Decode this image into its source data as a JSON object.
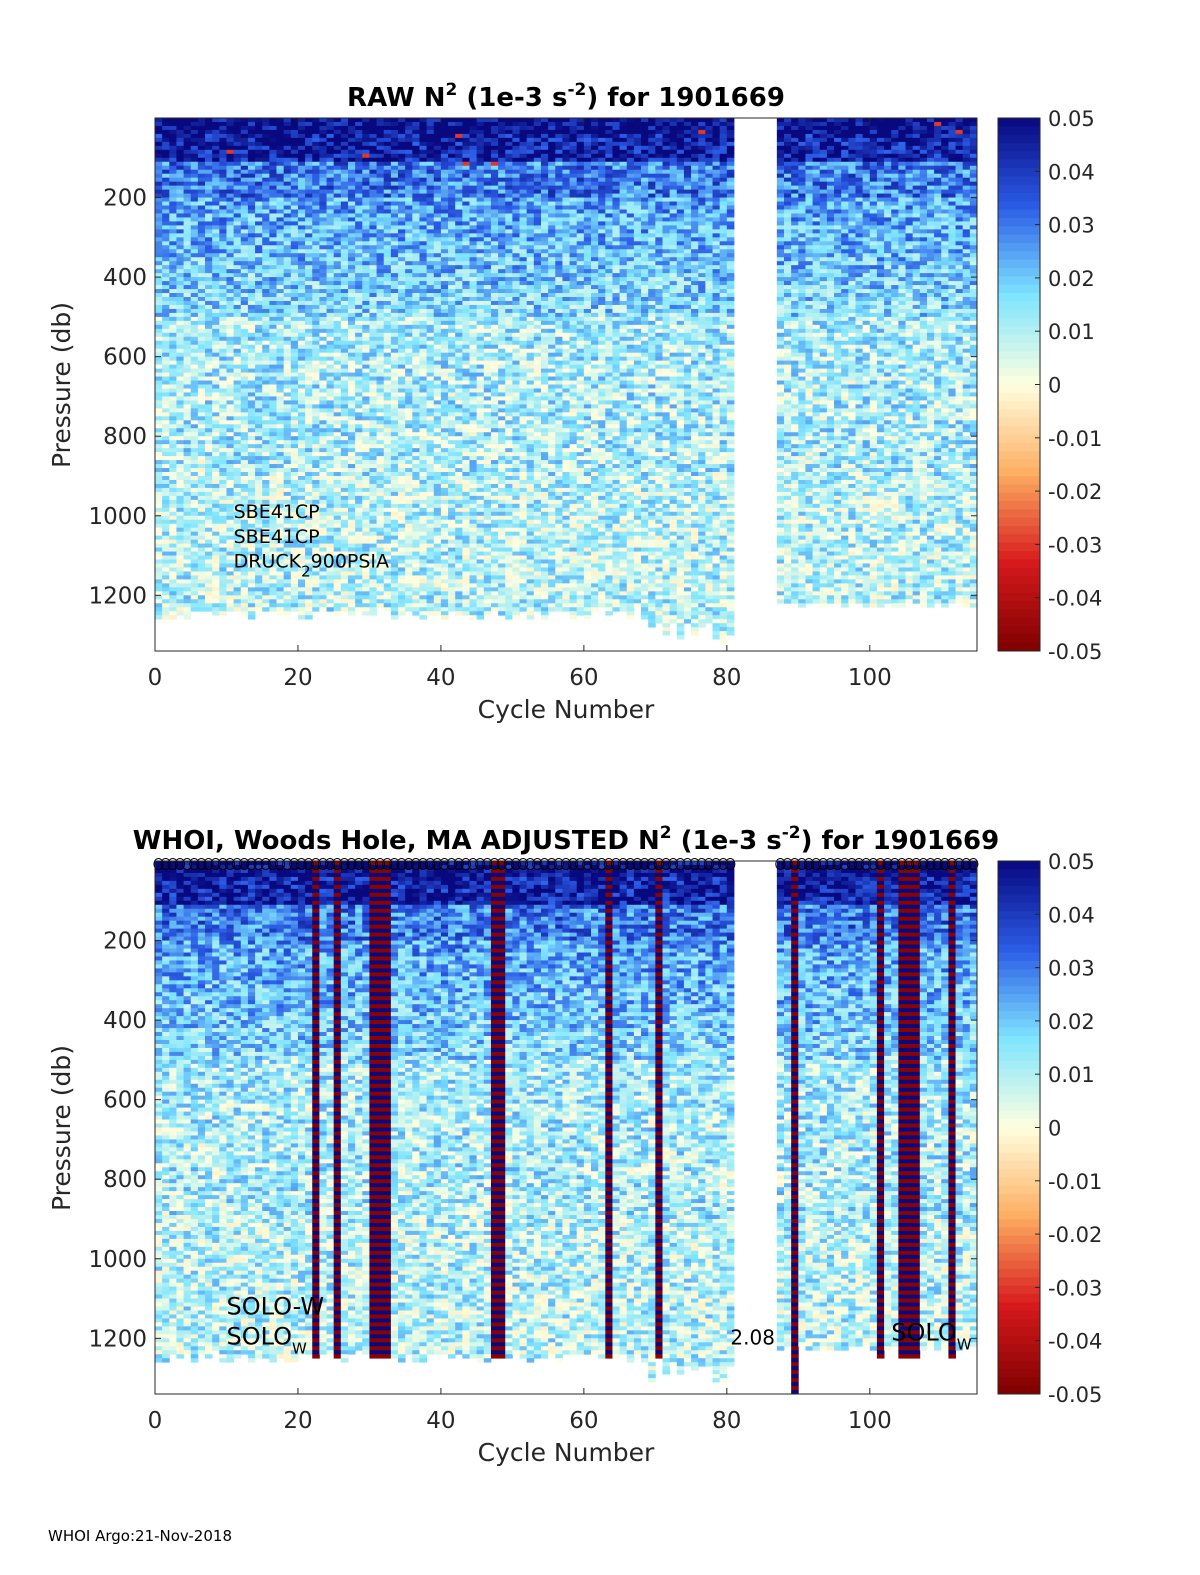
{
  "footer": "WHOI Argo:21-Nov-2018",
  "colorbar": {
    "ticks": [
      "0.05",
      "0.04",
      "0.03",
      "0.02",
      "0.01",
      "0",
      "-0.01",
      "-0.02",
      "-0.03",
      "-0.04",
      "-0.05"
    ],
    "range": [
      -0.05,
      0.05
    ],
    "colormap": [
      "#7f0000",
      "#d7191c",
      "#fdae61",
      "#ffffe0",
      "#7fe5ff",
      "#2b5ce6",
      "#08087f"
    ]
  },
  "chart_data": [
    {
      "type": "heatmap",
      "title_parts": [
        "RAW N",
        "2",
        " (1e-3 s",
        "-2",
        ") for 1901669"
      ],
      "xlabel": "Cycle Number",
      "ylabel": "Pressure (db)",
      "xlim": [
        0,
        115
      ],
      "ylim": [
        1340,
        0
      ],
      "x_ticks": [
        "0",
        "20",
        "40",
        "60",
        "80",
        "100"
      ],
      "y_ticks": [
        "200",
        "400",
        "600",
        "800",
        "1000",
        "1200"
      ],
      "missing_cycles": [
        81,
        82,
        83,
        84,
        85,
        86
      ],
      "value_pattern": "surface layer 0-100 db strongly positive (~0.05); 100-500 db 0.02-0.04; below 500 db mostly 0-0.015",
      "annotations": [
        {
          "text": "SBE41CP",
          "x": 11,
          "y": 1005
        },
        {
          "text": "SBE41CP",
          "x": 11,
          "y": 1068
        },
        {
          "text": "DRUCK",
          "sub": "2",
          "text2": "900PSIA",
          "x": 11,
          "y": 1130
        }
      ]
    },
    {
      "type": "heatmap",
      "title_parts": [
        "WHOI, Woods Hole, MA  ADJUSTED N",
        "2",
        " (1e-3 s",
        "-2",
        ") for 1901669"
      ],
      "xlabel": "Cycle Number",
      "ylabel": "Pressure (db)",
      "xlim": [
        0,
        115
      ],
      "ylim": [
        1340,
        0
      ],
      "x_ticks": [
        "0",
        "20",
        "40",
        "60",
        "80",
        "100"
      ],
      "y_ticks": [
        "200",
        "400",
        "600",
        "800",
        "1000",
        "1200"
      ],
      "missing_cycles": [
        81,
        82,
        83,
        84,
        85,
        86
      ],
      "flagged_cycles": [
        22,
        25,
        30,
        31,
        32,
        47,
        48,
        63,
        70,
        89,
        101,
        104,
        105,
        106,
        111
      ],
      "qc_marker_row": "circles at top of every cycle",
      "annotations": [
        {
          "text": "SOLO-W",
          "x": 10,
          "y": 1140
        },
        {
          "text": "SOLO",
          "sub": "W",
          "x": 10,
          "y": 1215
        },
        {
          "text": "2.08",
          "x": 80.5,
          "y": 1215
        },
        {
          "text": "SOLO",
          "sub": "W",
          "x": 103,
          "y": 1205
        }
      ]
    }
  ]
}
